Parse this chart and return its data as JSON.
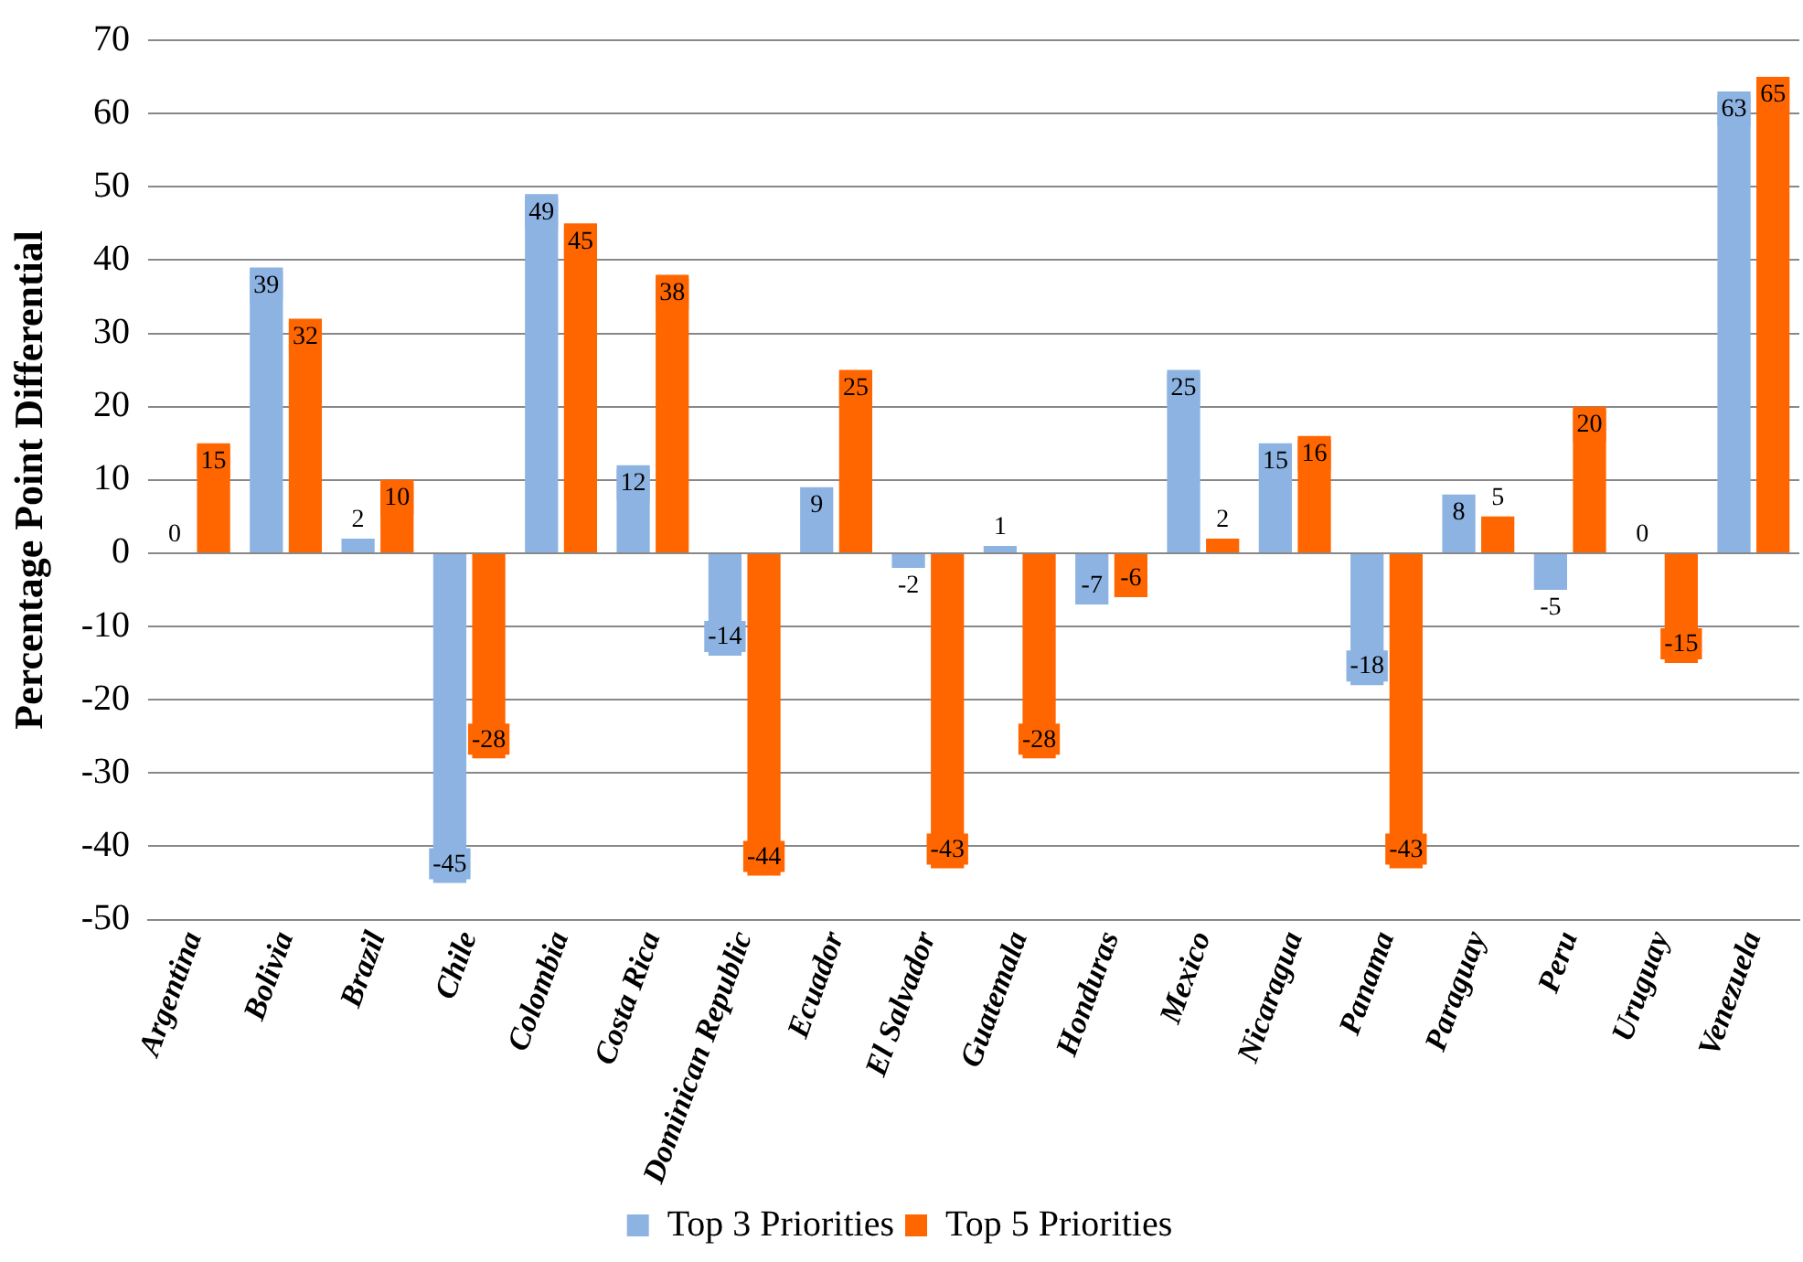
{
  "chart_data": {
    "type": "bar",
    "ylabel": "Percentage Point Differential",
    "categories": [
      "Argentina",
      "Bolivia",
      "Brazil",
      "Chile",
      "Colombia",
      "Costa Rica",
      "Dominican Republic",
      "Ecuador",
      "El Salvador",
      "Guatemala",
      "Honduras",
      "Mexico",
      "Nicaragua",
      "Panama",
      "Paraguay",
      "Peru",
      "Uruguay",
      "Venezuela"
    ],
    "series": [
      {
        "name": "Top 3 Priorities",
        "color": "#8db3e2",
        "values": [
          0,
          39,
          2,
          -45,
          49,
          12,
          -14,
          9,
          -2,
          1,
          -7,
          25,
          15,
          -18,
          8,
          -5,
          0,
          63
        ]
      },
      {
        "name": "Top 5 Priorities",
        "color": "#ff6600",
        "values": [
          15,
          32,
          10,
          -28,
          45,
          38,
          -44,
          25,
          -43,
          -28,
          -6,
          2,
          16,
          -43,
          5,
          20,
          -15,
          65
        ]
      }
    ],
    "ylim": [
      -50,
      70
    ],
    "yticks": [
      -50,
      -40,
      -30,
      -20,
      -10,
      0,
      10,
      20,
      30,
      40,
      50,
      60,
      70
    ],
    "grid": "y",
    "legend": "bottom",
    "data_labels": true
  }
}
